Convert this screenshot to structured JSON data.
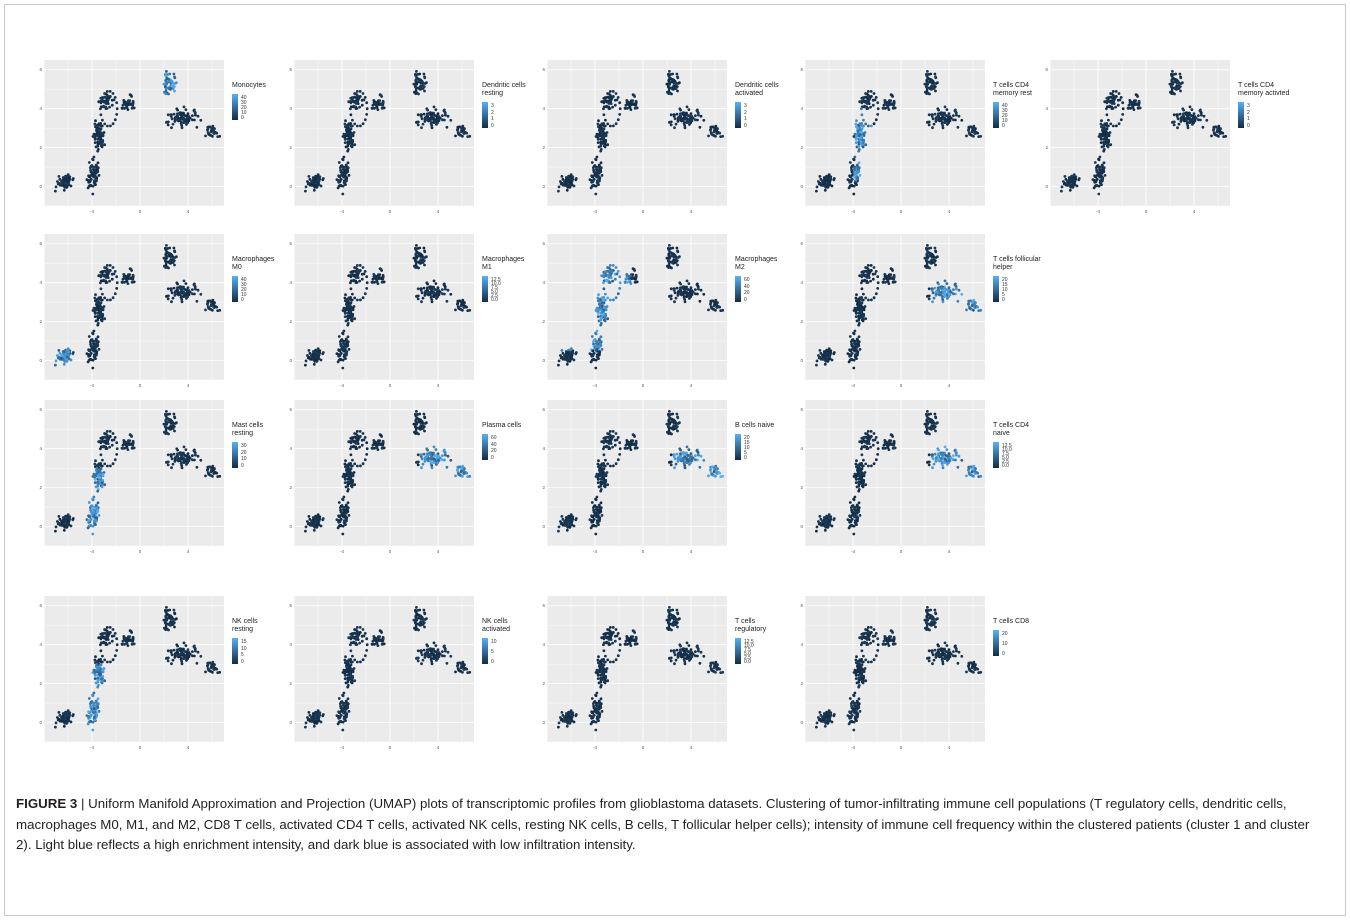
{
  "caption": {
    "label": "FIGURE 3",
    "separator": " | ",
    "text": "Uniform Manifold Approximation and Projection (UMAP) plots of transcriptomic profiles from glioblastoma datasets. Clustering of tumor-infiltrating immune cell populations (T regulatory cells, dendritic cells, macrophages M0, M1, and M2, CD8 T cells, activated CD4 T cells, activated NK cells, resting NK cells, B cells, T follicular helper cells); intensity of immune cell frequency within the clustered patients (cluster 1 and cluster 2). Light blue reflects a high enrichment intensity, and dark blue is associated with low infiltration intensity."
  },
  "colors": {
    "low": "#132b43",
    "high": "#56b1f7",
    "panel_bg": "#ebebeb",
    "grid": "#ffffff"
  },
  "axes": {
    "x_ticks": [
      "-4",
      "0",
      "4"
    ],
    "y_ticks": [
      "0",
      "2",
      "4",
      "6"
    ],
    "xlim": [
      -8,
      7
    ],
    "ylim": [
      -1,
      6.5
    ]
  },
  "chart_data": [
    {
      "type": "scatter",
      "legend": "Monocytes",
      "scale_ticks": [
        "40",
        "30",
        "20",
        "10",
        "0"
      ],
      "max": 45,
      "hot": "top_right"
    },
    {
      "type": "scatter",
      "legend": "Dendritic cells\nresting",
      "scale_ticks": [
        "3",
        "2",
        "1",
        "0"
      ],
      "max": 3.5,
      "hot": "none"
    },
    {
      "type": "scatter",
      "legend": "Dendritic cells\nactivated",
      "scale_ticks": [
        "3",
        "2",
        "1",
        "0"
      ],
      "max": 3.5,
      "hot": "none"
    },
    {
      "type": "scatter",
      "legend": "T cells CD4\nmemory rest",
      "scale_ticks": [
        "40",
        "30",
        "20",
        "10",
        "0"
      ],
      "max": 45,
      "hot": "mid_column"
    },
    {
      "type": "scatter",
      "legend": "T cells CD4\nmemory activted",
      "scale_ticks": [
        "3",
        "2",
        "1",
        "0"
      ],
      "max": 3.5,
      "hot": "none"
    },
    {
      "type": "scatter",
      "legend": "Macrophages\nM0",
      "scale_ticks": [
        "40",
        "30",
        "20",
        "10",
        "0"
      ],
      "max": 45,
      "hot": "bottom_left"
    },
    {
      "type": "scatter",
      "legend": "Macrophages\nM1",
      "scale_ticks": [
        "12.5",
        "10.0",
        "7.5",
        "5.0",
        "2.5",
        "0.0"
      ],
      "max": 13,
      "hot": "none"
    },
    {
      "type": "scatter",
      "legend": "Macrophages\nM2",
      "scale_ticks": [
        "60",
        "40",
        "20",
        "0"
      ],
      "max": 65,
      "hot": "left_column"
    },
    {
      "type": "scatter",
      "legend": "T cells follicular\nhelper",
      "scale_ticks": [
        "20",
        "15",
        "10",
        "5",
        "0"
      ],
      "max": 25,
      "hot": "right_lobe"
    },
    {
      "type": "scatter",
      "legend": "Mast cells\nresting",
      "scale_ticks": [
        "30",
        "20",
        "10",
        "0"
      ],
      "max": 35,
      "hot": "lower_column"
    },
    {
      "type": "scatter",
      "legend": "Plasma cells",
      "scale_ticks": [
        "60",
        "40",
        "20",
        "0"
      ],
      "max": 65,
      "hot": "right_lobe"
    },
    {
      "type": "scatter",
      "legend": "B cells naive",
      "scale_ticks": [
        "20",
        "15",
        "10",
        "5",
        "0"
      ],
      "max": 25,
      "hot": "right_lobe"
    },
    {
      "type": "scatter",
      "legend": "T cells CD4\nnaive",
      "scale_ticks": [
        "12.5",
        "10.0",
        "7.5",
        "5.0",
        "2.5",
        "0.0"
      ],
      "max": 13,
      "hot": "right_lobe"
    },
    {
      "type": "scatter",
      "legend": "NK cells\nresting",
      "scale_ticks": [
        "15",
        "10",
        "5",
        "0"
      ],
      "max": 18,
      "hot": "lower_column"
    },
    {
      "type": "scatter",
      "legend": "NK cells\nactivated",
      "scale_ticks": [
        "10",
        "5",
        "0"
      ],
      "max": 12,
      "hot": "none"
    },
    {
      "type": "scatter",
      "legend": "T cells\nregulatory",
      "scale_ticks": [
        "12.5",
        "10.0",
        "7.5",
        "5.0",
        "2.5",
        "0.0"
      ],
      "max": 13,
      "hot": "none"
    },
    {
      "type": "scatter",
      "legend": "T cells CD8",
      "scale_ticks": [
        "20",
        "10",
        "0"
      ],
      "max": 25,
      "hot": "none"
    }
  ]
}
